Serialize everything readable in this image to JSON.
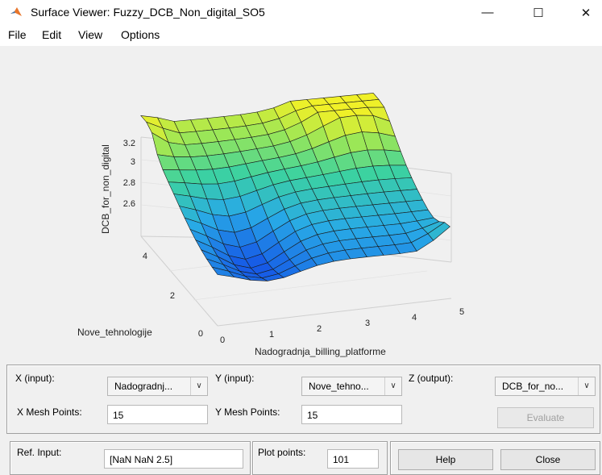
{
  "window": {
    "title": "Surface Viewer: Fuzzy_DCB_Non_digital_SO5",
    "minimize_glyph": "—",
    "maximize_glyph": "☐",
    "close_glyph": "✕"
  },
  "menu": {
    "items": [
      "File",
      "Edit",
      "View",
      "Options"
    ]
  },
  "plot": {
    "z_label": "DCB_for_non_digital",
    "x_label": "Nadogradnja_billing_platforme",
    "y_label": "Nove_tehnologije",
    "z_ticks": [
      "2.6",
      "2.8",
      "3",
      "3.2"
    ],
    "x_ticks": [
      "0",
      "1",
      "2",
      "3",
      "4",
      "5"
    ],
    "y_ticks": [
      "0",
      "2",
      "4"
    ]
  },
  "controls": {
    "x_input_label": "X (input):",
    "x_input_value": "Nadogradnj...",
    "y_input_label": "Y (input):",
    "y_input_value": "Nove_tehno...",
    "z_output_label": "Z (output):",
    "z_output_value": "DCB_for_no...",
    "x_mesh_label": "X Mesh Points:",
    "x_mesh_value": "15",
    "y_mesh_label": "Y Mesh Points:",
    "y_mesh_value": "15",
    "evaluate_label": "Evaluate",
    "ref_input_label": "Ref. Input:",
    "ref_input_value": "[NaN NaN 2.5]",
    "plot_points_label": "Plot points:",
    "plot_points_value": "101",
    "help_label": "Help",
    "close_label": "Close"
  }
}
